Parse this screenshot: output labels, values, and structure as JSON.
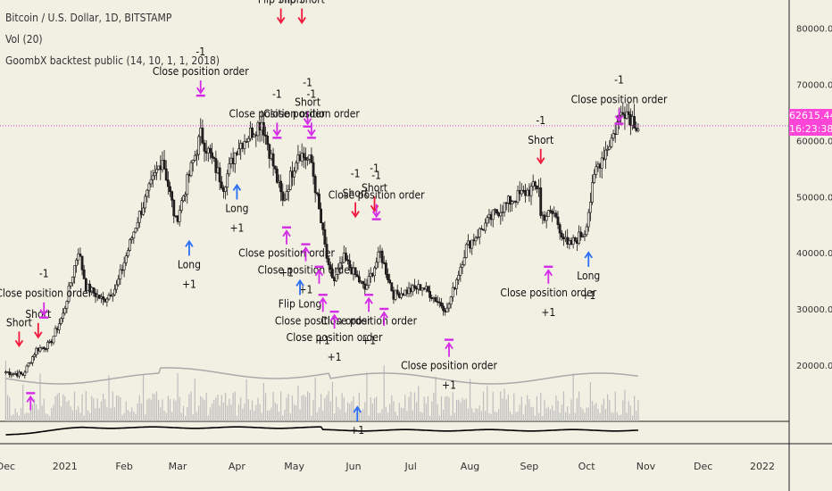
{
  "legend": {
    "title": "Bitcoin / U.S. Dollar, 1D, BITSTAMP",
    "vol": "Vol (20)",
    "strategy": "GoombX backtest public (14, 10, 1, 1, 2018)"
  },
  "current_price": "62615.44",
  "countdown": "16:23:38",
  "colors": {
    "background": "#f2efe3",
    "candle": "#111111",
    "volume": "#bdbdbd",
    "equity": "#000000",
    "long_arrow": "#2a6ef5",
    "short_arrow": "#f0193c",
    "close_marker": "#d42be6",
    "price_line": "#e040e0"
  },
  "chart_data": {
    "type": "candlestick",
    "symbol": "BTCUSD",
    "timeframe": "1D",
    "x_range": [
      "2020-11-28",
      "2022-01-15"
    ],
    "ylim": [
      10000,
      85000
    ],
    "y_ticks": [
      20000,
      30000,
      40000,
      50000,
      60000,
      70000,
      80000
    ],
    "y_tick_labels": [
      "20000.00",
      "30000.00",
      "40000.00",
      "50000.00",
      "60000.00",
      "70000.00",
      "80000.00"
    ],
    "x_ticks": [
      {
        "date": "2020-12-01",
        "label": "Dec"
      },
      {
        "date": "2021-01-01",
        "label": "2021"
      },
      {
        "date": "2021-02-01",
        "label": "Feb"
      },
      {
        "date": "2021-03-01",
        "label": "Mar"
      },
      {
        "date": "2021-04-01",
        "label": "Apr"
      },
      {
        "date": "2021-05-01",
        "label": "May"
      },
      {
        "date": "2021-06-01",
        "label": "Jun"
      },
      {
        "date": "2021-07-01",
        "label": "Jul"
      },
      {
        "date": "2021-08-01",
        "label": "Aug"
      },
      {
        "date": "2021-09-01",
        "label": "Sep"
      },
      {
        "date": "2021-10-01",
        "label": "Oct"
      },
      {
        "date": "2021-11-01",
        "label": "Nov"
      },
      {
        "date": "2021-12-01",
        "label": "Dec"
      },
      {
        "date": "2022-01-01",
        "label": "2022"
      }
    ],
    "price_path": [
      [
        "2020-12-01",
        18800
      ],
      [
        "2020-12-10",
        18300
      ],
      [
        "2020-12-17",
        22800
      ],
      [
        "2020-12-24",
        23700
      ],
      [
        "2020-12-31",
        29000
      ],
      [
        "2021-01-08",
        40500
      ],
      [
        "2021-01-12",
        34000
      ],
      [
        "2021-01-21",
        31500
      ],
      [
        "2021-01-28",
        34000
      ],
      [
        "2021-02-08",
        46000
      ],
      [
        "2021-02-21",
        57000
      ],
      [
        "2021-02-28",
        45500
      ],
      [
        "2021-03-13",
        61000
      ],
      [
        "2021-03-25",
        52000
      ],
      [
        "2021-04-01",
        58800
      ],
      [
        "2021-04-14",
        63500
      ],
      [
        "2021-04-25",
        49000
      ],
      [
        "2021-05-03",
        58000
      ],
      [
        "2021-05-10",
        56000
      ],
      [
        "2021-05-13",
        49500
      ],
      [
        "2021-05-19",
        37000
      ],
      [
        "2021-05-22",
        35000
      ],
      [
        "2021-05-27",
        39000
      ],
      [
        "2021-06-07",
        33500
      ],
      [
        "2021-06-15",
        40000
      ],
      [
        "2021-06-22",
        32500
      ],
      [
        "2021-07-07",
        34000
      ],
      [
        "2021-07-20",
        29800
      ],
      [
        "2021-07-30",
        41000
      ],
      [
        "2021-08-14",
        47000
      ],
      [
        "2021-08-23",
        49500
      ],
      [
        "2021-09-06",
        52000
      ],
      [
        "2021-09-07",
        46500
      ],
      [
        "2021-09-14",
        47000
      ],
      [
        "2021-09-21",
        41000
      ],
      [
        "2021-09-30",
        43800
      ],
      [
        "2021-10-06",
        55000
      ],
      [
        "2021-10-15",
        61000
      ],
      [
        "2021-10-20",
        66000
      ],
      [
        "2021-10-28",
        62615
      ]
    ],
    "volume_series": "Vol (20)",
    "equity_series": "GoombX backtest public equity",
    "signals": [
      {
        "date": "2020-12-08",
        "kind": "short",
        "price": 22500,
        "labels": [
          "Short"
        ]
      },
      {
        "date": "2020-12-18",
        "kind": "short",
        "price": 24000,
        "labels": [
          "Short"
        ]
      },
      {
        "date": "2020-12-21",
        "kind": "close",
        "price": 28000,
        "labels": [
          "-1",
          "Close position order"
        ]
      },
      {
        "date": "2020-12-14",
        "kind": "close-up",
        "price": 15500,
        "labels": []
      },
      {
        "date": "2021-03-13",
        "kind": "close",
        "price": 67500,
        "labels": [
          "-1",
          "Close position order"
        ]
      },
      {
        "date": "2021-03-07",
        "kind": "long",
        "price": 43000,
        "labels": [
          "Long",
          "+1"
        ]
      },
      {
        "date": "2021-04-01",
        "kind": "long",
        "price": 53000,
        "labels": [
          "Long",
          "+1"
        ]
      },
      {
        "date": "2021-04-24",
        "kind": "short",
        "price": 80000,
        "labels": [
          "Flip Short"
        ]
      },
      {
        "date": "2021-05-05",
        "kind": "short",
        "price": 80000,
        "labels": [
          "Flip Short"
        ]
      },
      {
        "date": "2021-04-22",
        "kind": "close",
        "price": 60000,
        "labels": [
          "-1",
          "Close position order"
        ]
      },
      {
        "date": "2021-05-08",
        "kind": "close",
        "price": 62000,
        "labels": [
          "-1",
          "Short"
        ]
      },
      {
        "date": "2021-05-10",
        "kind": "close",
        "price": 60000,
        "labels": [
          "-1",
          "Close position order"
        ]
      },
      {
        "date": "2021-04-27",
        "kind": "close-up",
        "price": 45000,
        "labels": [
          "Close position order",
          "+1"
        ]
      },
      {
        "date": "2021-05-07",
        "kind": "close-up",
        "price": 42000,
        "labels": [
          "Close position order",
          "+1"
        ]
      },
      {
        "date": "2021-05-14",
        "kind": "close-up",
        "price": 38000,
        "labels": []
      },
      {
        "date": "2021-05-04",
        "kind": "long",
        "price": 36000,
        "labels": [
          "Flip Long"
        ]
      },
      {
        "date": "2021-05-16",
        "kind": "close-up",
        "price": 33000,
        "labels": [
          "Close position order",
          "+1"
        ]
      },
      {
        "date": "2021-06-09",
        "kind": "close-up",
        "price": 33000,
        "labels": [
          "Close position order",
          "+1"
        ]
      },
      {
        "date": "2021-05-22",
        "kind": "close-up",
        "price": 30000,
        "labels": [
          "Close position order",
          "+1"
        ]
      },
      {
        "date": "2021-06-02",
        "kind": "short",
        "price": 45500,
        "labels": [
          "-1",
          "Short"
        ]
      },
      {
        "date": "2021-06-12",
        "kind": "short",
        "price": 46500,
        "labels": [
          "-1",
          "Short"
        ]
      },
      {
        "date": "2021-06-13",
        "kind": "close",
        "price": 45500,
        "labels": [
          "-1",
          "Close position order"
        ]
      },
      {
        "date": "2021-06-17",
        "kind": "close-up",
        "price": 30500,
        "labels": []
      },
      {
        "date": "2021-07-21",
        "kind": "close-up",
        "price": 25000,
        "labels": [
          "Close position order",
          "+1"
        ]
      },
      {
        "date": "2021-06-03",
        "kind": "long",
        "price": 13500,
        "labels": [
          "+1"
        ]
      },
      {
        "date": "2021-09-07",
        "kind": "short",
        "price": 55000,
        "labels": [
          "-1",
          "Short"
        ]
      },
      {
        "date": "2021-09-11",
        "kind": "close-up",
        "price": 38000,
        "labels": [
          "Close position order",
          "+1"
        ]
      },
      {
        "date": "2021-10-02",
        "kind": "long",
        "price": 41000,
        "labels": [
          "Long",
          "+1"
        ]
      },
      {
        "date": "2021-10-18",
        "kind": "close",
        "price": 62500,
        "labels": [
          "-1",
          "Close position order"
        ]
      }
    ]
  }
}
